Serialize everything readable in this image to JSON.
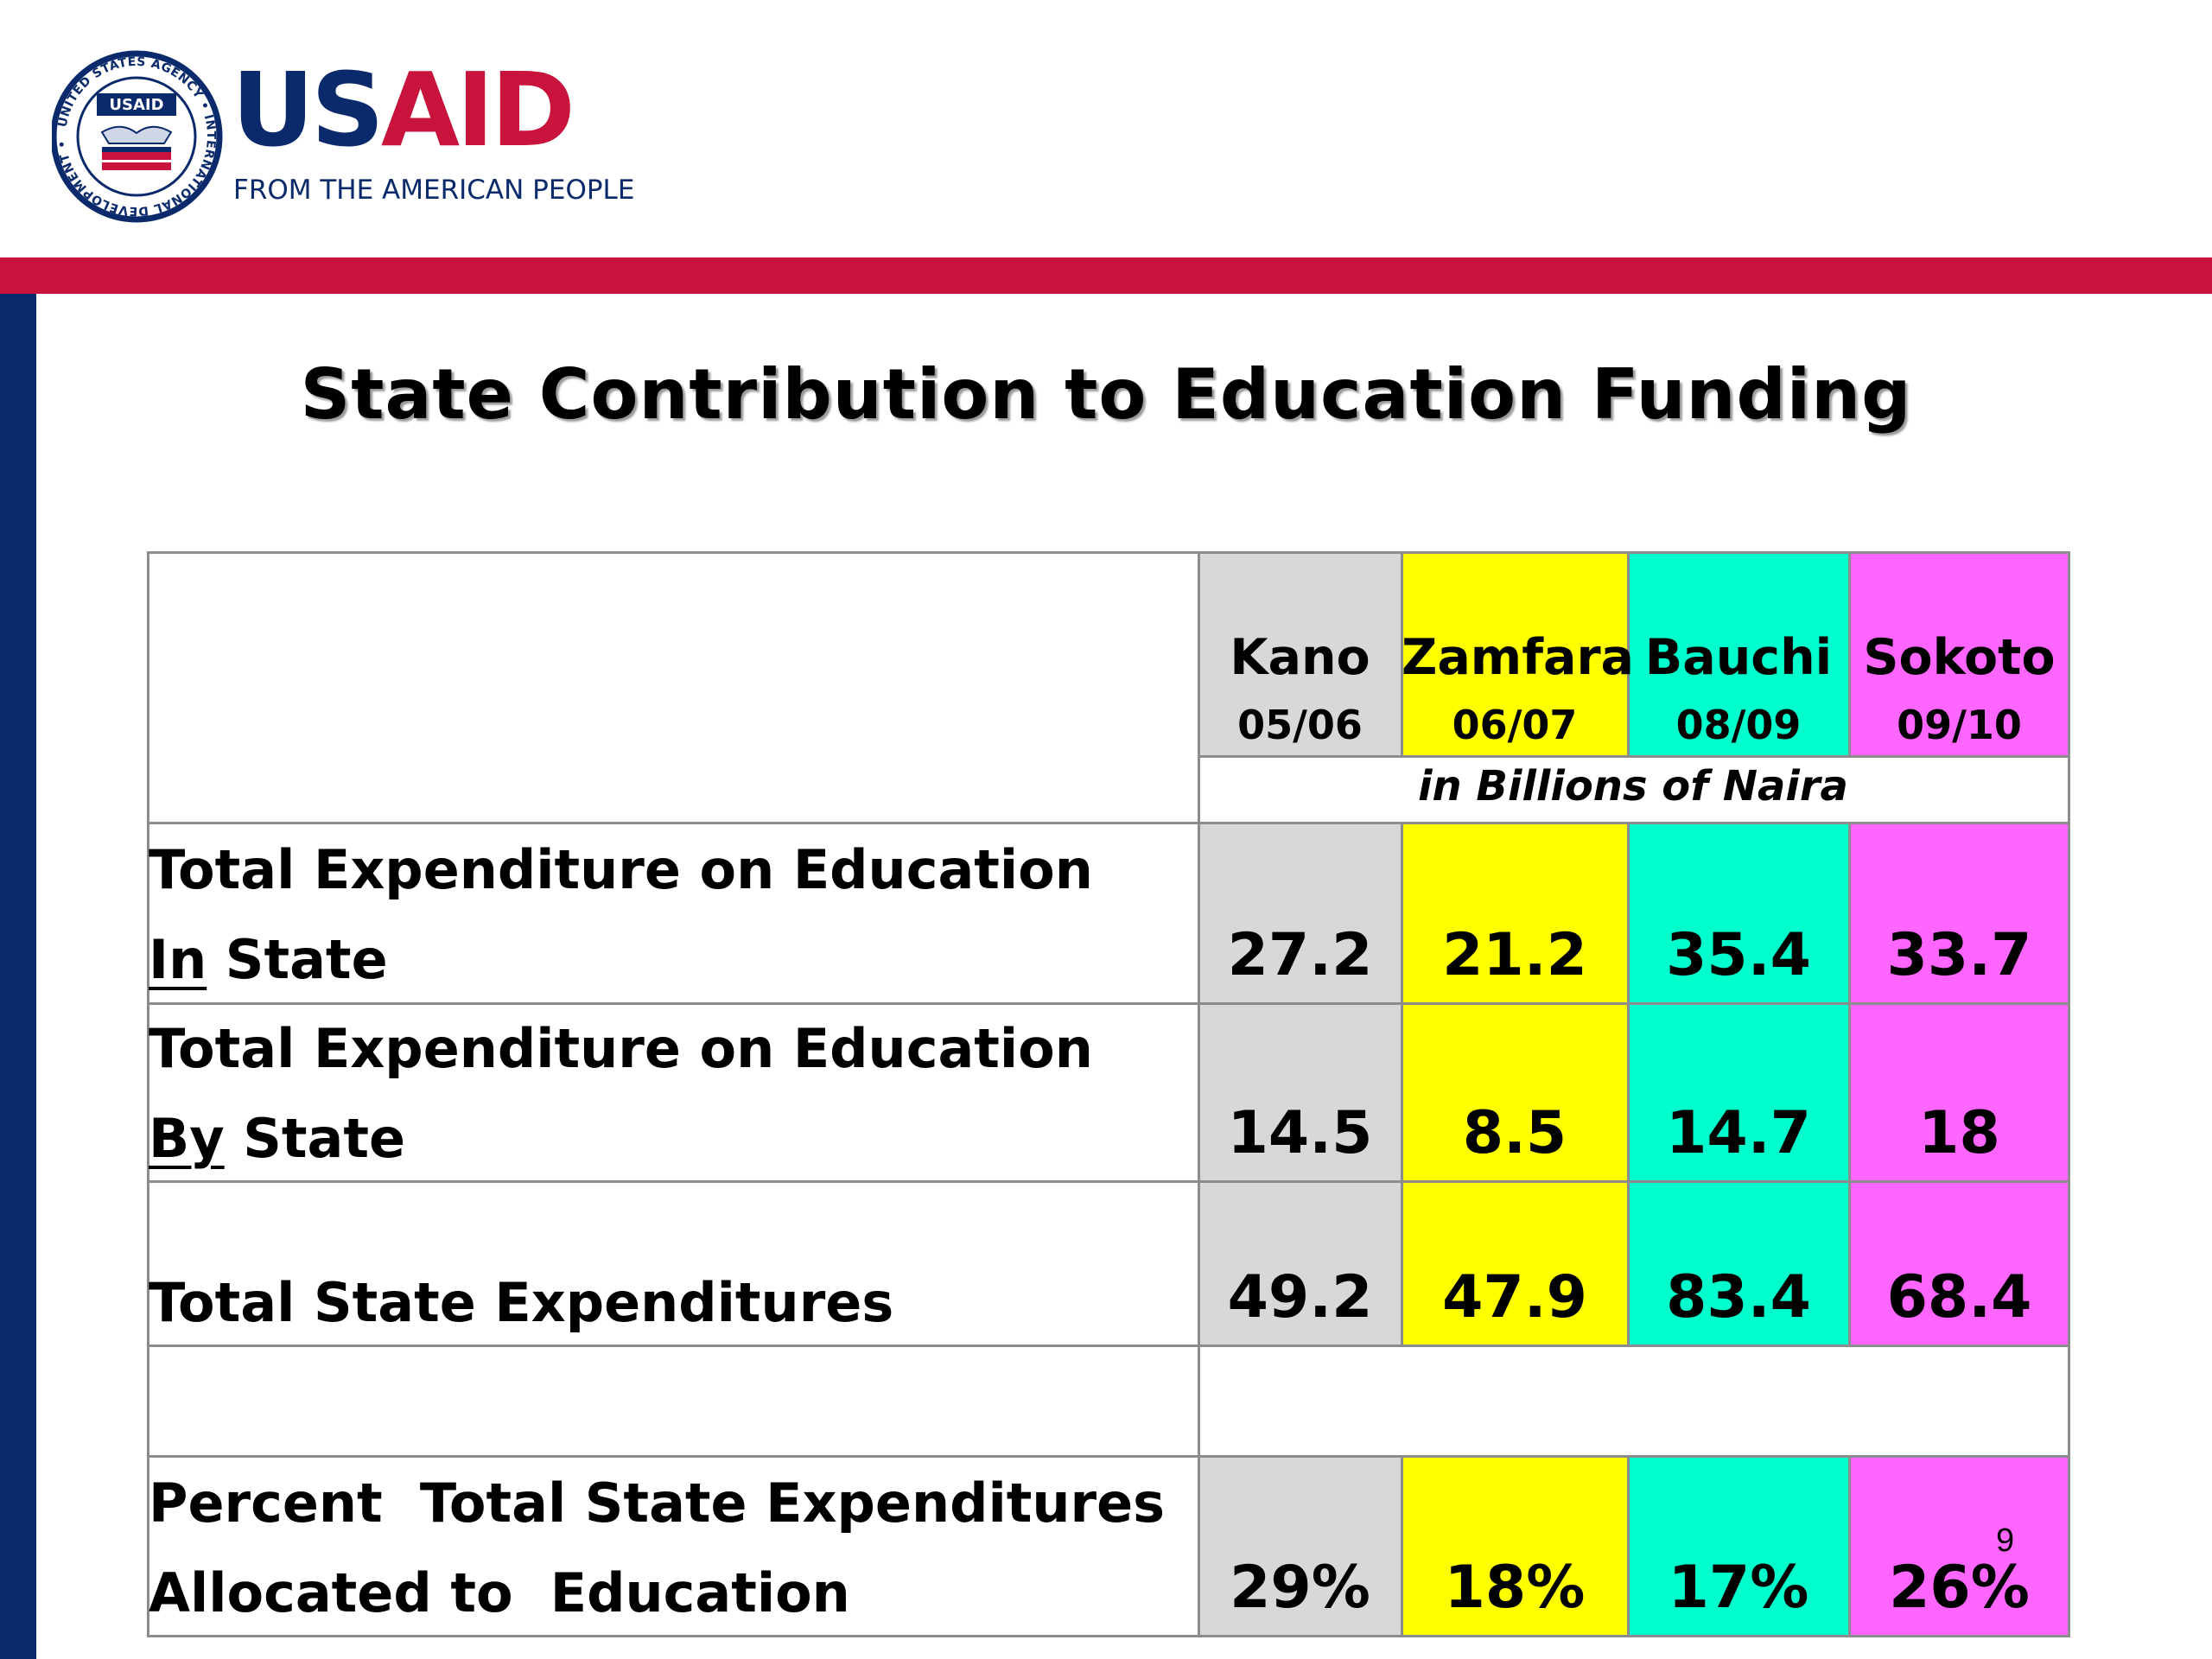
{
  "logo": {
    "seal_text": "UNITED STATES AGENCY INTERNATIONAL DEVELOPMENT",
    "seal_badge": "USAID",
    "wordmark": "USAID",
    "tagline": "FROM THE AMERICAN PEOPLE",
    "colors": {
      "blue": "#0a2a6b",
      "red": "#c8143c"
    }
  },
  "title": "State Contribution to Education Funding",
  "table": {
    "columns": [
      {
        "name": "Kano",
        "year": "05/06",
        "color": "#d8d8d8"
      },
      {
        "name": "Zamfara",
        "year": "06/07",
        "color": "#ffff00"
      },
      {
        "name": "Bauchi",
        "year": "08/09",
        "color": "#00ffcc"
      },
      {
        "name": "Sokoto",
        "year": "09/10",
        "color": "#ff66ff"
      }
    ],
    "unit_note": "in Billions of Naira",
    "rows": [
      {
        "label_line1": "Total Expenditure on Education",
        "label_line2_underlined": "In",
        "label_line2_rest": " State",
        "values": [
          "27.2",
          "21.2",
          "35.4",
          "33.7"
        ]
      },
      {
        "label_line1": "Total Expenditure on Education",
        "label_line2_underlined": "By",
        "label_line2_rest": " State",
        "values": [
          "14.5",
          "8.5",
          "14.7",
          "18"
        ]
      },
      {
        "label": "Total State Expenditures",
        "values": [
          "49.2",
          "47.9",
          "83.4",
          "68.4"
        ]
      },
      {
        "label_line1": "Percent  Total State Expenditures",
        "label_line2": "Allocated to  Education",
        "values": [
          "29%",
          "18%",
          "17%",
          "26%"
        ]
      }
    ]
  },
  "page_number": "9"
}
